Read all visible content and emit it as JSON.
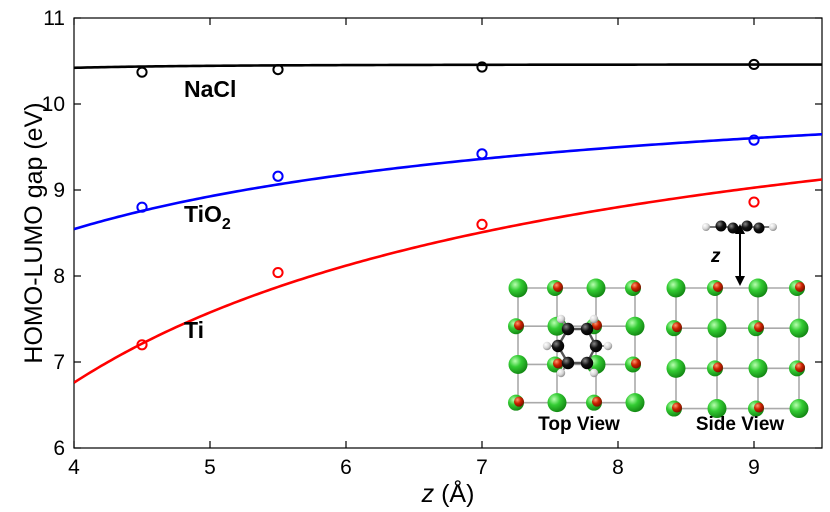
{
  "chart_data": {
    "type": "line",
    "title": "",
    "xlabel_var": "z",
    "xlabel_unit": "(Å)",
    "ylabel": "HOMO-LUMO gap (eV)",
    "xlim": [
      4,
      9.5
    ],
    "ylim": [
      6,
      11
    ],
    "xticks": [
      "4",
      "5",
      "6",
      "7",
      "8",
      "9"
    ],
    "yticks": [
      "6",
      "7",
      "8",
      "9",
      "10",
      "11"
    ],
    "series": [
      {
        "name": "NaCl",
        "label_main": "NaCl",
        "label_sub": "",
        "color": "#000000",
        "points": [
          {
            "x": 4.5,
            "y": 10.37
          },
          {
            "x": 5.5,
            "y": 10.4
          },
          {
            "x": 7.0,
            "y": 10.43
          },
          {
            "x": 9.0,
            "y": 10.46
          }
        ],
        "fit": {
          "limit": 10.46,
          "coef": 10.0,
          "power": 4
        }
      },
      {
        "name": "TiO2",
        "label_main": "TiO",
        "label_sub": "2",
        "color": "#0000ff",
        "points": [
          {
            "x": 4.5,
            "y": 8.8
          },
          {
            "x": 5.5,
            "y": 9.16
          },
          {
            "x": 7.0,
            "y": 9.42
          },
          {
            "x": 9.0,
            "y": 9.58
          }
        ],
        "fit": {
          "limit": 10.45,
          "coef": 7.62,
          "power": 1
        }
      },
      {
        "name": "Ti",
        "label_main": "Ti",
        "label_sub": "",
        "color": "#ff0000",
        "points": [
          {
            "x": 4.5,
            "y": 7.2
          },
          {
            "x": 5.5,
            "y": 8.04
          },
          {
            "x": 7.0,
            "y": 8.6
          },
          {
            "x": 9.0,
            "y": 8.86
          }
        ],
        "fit": {
          "limit": 10.84,
          "coef": 16.32,
          "power": 1
        }
      }
    ],
    "inset": {
      "top_view_label": "Top View",
      "side_view_label": "Side View",
      "distance_label": "z"
    },
    "colors": {
      "axes": "#000000",
      "na_atom": "#33cc33",
      "cl_atom": "#cc2200",
      "carbon": "#111111",
      "hydrogen": "#dddddd",
      "lattice": "#aaaaaa"
    }
  }
}
